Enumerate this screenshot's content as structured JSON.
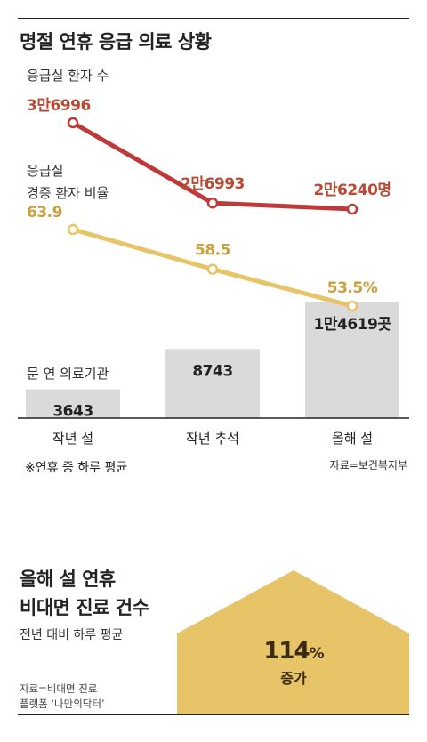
{
  "chart_data": {
    "type": "bar+line",
    "title": "명절 연휴 응급 의료 상황",
    "categories": [
      "작년 설",
      "작년 추석",
      "올해 설"
    ],
    "bars": {
      "name": "문 연 의료기관",
      "values": [
        3643,
        8743,
        14619
      ],
      "labels": [
        "3643",
        "8743",
        "1만4619곳"
      ],
      "color": "#dadada"
    },
    "series": [
      {
        "name_lines": [
          "응급실 환자 수"
        ],
        "values": [
          36996,
          26993,
          26240
        ],
        "labels": [
          "3만6996",
          "2만6993",
          "2만6240명"
        ],
        "color": "#c0393a",
        "label_color": "#b84a33"
      },
      {
        "name_lines": [
          "응급실",
          "경증 환자 비율"
        ],
        "values": [
          63.9,
          58.5,
          53.5
        ],
        "labels": [
          "63.9",
          "58.5",
          "53.5%"
        ],
        "color": "#e8c468",
        "label_color": "#c9a03a"
      }
    ],
    "note": "※연휴 중 하루 평균",
    "source": "자료=보건복지부",
    "grid": false
  },
  "bottom": {
    "title_line1": "올해 설 연휴",
    "title_line2": "비대면 진료 건수",
    "subtitle": "전년 대비 하루 평균",
    "source_line1": "자료=비대면 진료",
    "source_line2": "플랫폼 ‘나만의닥터’",
    "highlight_value": "114",
    "highlight_unit": "%",
    "highlight_label": "증가",
    "shape_color": "#e8c468",
    "text_color": "#3a2a12"
  }
}
